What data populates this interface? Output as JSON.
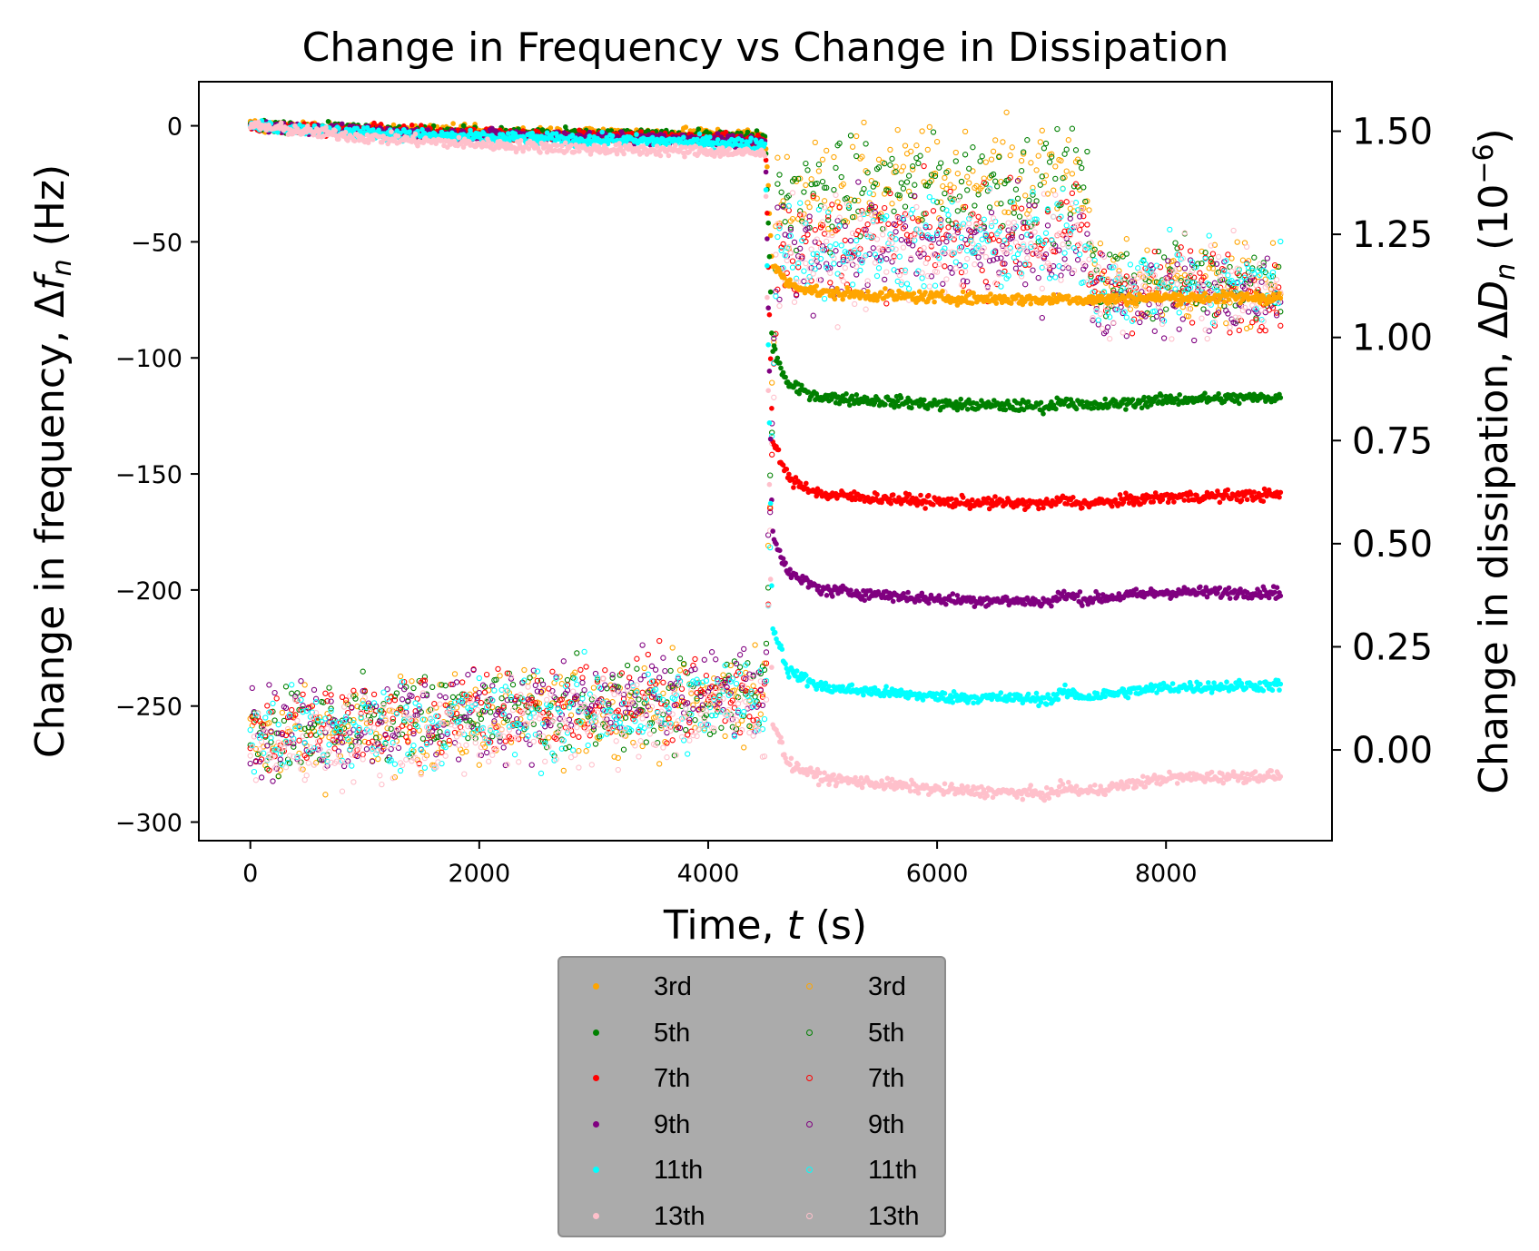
{
  "chart_data": {
    "type": "scatter",
    "title": "Change in Frequency vs Change in Dissipation",
    "xlabel": "Time, t (s)",
    "ylabel_left": "Change in frequency, Δf_n (Hz)",
    "ylabel_right": "Change in dissipation, ΔD_n (10^-6)",
    "xlim": [
      -450,
      9450
    ],
    "ylim_left": [
      -308,
      19
    ],
    "ylim_right": [
      -0.22,
      1.62
    ],
    "x_ticks": [
      0,
      2000,
      4000,
      6000,
      8000
    ],
    "x_tick_labels": [
      "0",
      "2000",
      "4000",
      "6000",
      "8000"
    ],
    "y_left_ticks": [
      0,
      -50,
      -100,
      -150,
      -200,
      -250,
      -300
    ],
    "y_left_tick_labels": [
      "0",
      "−50",
      "−100",
      "−150",
      "−200",
      "−250",
      "−300"
    ],
    "y_right_ticks": [
      1.5,
      1.25,
      1.0,
      0.75,
      0.5,
      0.25,
      0.0
    ],
    "y_right_tick_labels": [
      "1.50",
      "1.25",
      "1.00",
      "0.75",
      "0.50",
      "0.25",
      "0.00"
    ],
    "grid": false,
    "legend_position": "below plot, center",
    "frequency_series": [
      {
        "name": "3rd",
        "color": "#ffa500",
        "x": [
          0,
          1000,
          2000,
          3000,
          4000,
          4500,
          4560,
          4700,
          5000,
          6000,
          7000,
          7100,
          7300,
          8000,
          9000
        ],
        "y": [
          0,
          -1.5,
          -2.5,
          -3,
          -3.5,
          -4,
          -60,
          -68,
          -72,
          -74,
          -75,
          -74,
          -75,
          -74,
          -74
        ]
      },
      {
        "name": "5th",
        "color": "#008000",
        "x": [
          0,
          1000,
          2000,
          3000,
          4000,
          4500,
          4560,
          4700,
          5000,
          6000,
          7000,
          7100,
          7300,
          8000,
          9000
        ],
        "y": [
          0,
          -1.5,
          -3,
          -4,
          -4.5,
          -5,
          -95,
          -112,
          -117,
          -120,
          -121,
          -118,
          -121,
          -118,
          -117
        ]
      },
      {
        "name": "7th",
        "color": "#ff0000",
        "x": [
          0,
          1000,
          2000,
          3000,
          4000,
          4500,
          4560,
          4700,
          5000,
          6000,
          7000,
          7100,
          7300,
          8000,
          9000
        ],
        "y": [
          0,
          -2,
          -3.5,
          -4.5,
          -5,
          -6,
          -135,
          -152,
          -159,
          -162,
          -163,
          -161,
          -163,
          -160,
          -159
        ]
      },
      {
        "name": "9th",
        "color": "#800080",
        "x": [
          0,
          1000,
          2000,
          3000,
          4000,
          4500,
          4560,
          4700,
          5000,
          6000,
          7000,
          7100,
          7300,
          8000,
          9000
        ],
        "y": [
          0,
          -2.5,
          -4,
          -5,
          -6,
          -7,
          -175,
          -193,
          -200,
          -204,
          -205,
          -202,
          -204,
          -201,
          -201
        ]
      },
      {
        "name": "11th",
        "color": "#00ffff",
        "x": [
          0,
          1000,
          2000,
          3000,
          4000,
          4500,
          4560,
          4700,
          5000,
          6000,
          7000,
          7100,
          7300,
          8000,
          9000
        ],
        "y": [
          0,
          -3,
          -5,
          -6,
          -7,
          -8,
          -215,
          -235,
          -242,
          -246,
          -247,
          -244,
          -246,
          -242,
          -241
        ]
      },
      {
        "name": "13th",
        "color": "#ffc0cb",
        "x": [
          0,
          1000,
          2000,
          3000,
          4000,
          4500,
          4560,
          4700,
          5000,
          6000,
          7000,
          7100,
          7300,
          8000,
          9000
        ],
        "y": [
          0,
          -5,
          -8,
          -10,
          -11,
          -12,
          -255,
          -275,
          -281,
          -286,
          -288,
          -285,
          -287,
          -281,
          -280
        ]
      }
    ],
    "dissipation_series": [
      {
        "name": "3rd",
        "color": "#ffa500",
        "x": [
          0,
          2000,
          4000,
          4500,
          4600,
          5500,
          6500,
          7300,
          7360,
          8000,
          9000
        ],
        "y": [
          0.02,
          0.07,
          0.12,
          0.14,
          1.34,
          1.38,
          1.39,
          1.4,
          1.12,
          1.13,
          1.12
        ]
      },
      {
        "name": "5th",
        "color": "#008000",
        "x": [
          0,
          2000,
          4000,
          4500,
          4600,
          5500,
          6500,
          7300,
          7360,
          8000,
          9000
        ],
        "y": [
          0.03,
          0.08,
          0.12,
          0.14,
          1.33,
          1.36,
          1.37,
          1.38,
          1.13,
          1.14,
          1.14
        ]
      },
      {
        "name": "7th",
        "color": "#ff0000",
        "x": [
          0,
          2000,
          4000,
          4500,
          4600,
          5500,
          6500,
          7300,
          7360,
          8000,
          9000
        ],
        "y": [
          0.04,
          0.09,
          0.13,
          0.14,
          1.22,
          1.24,
          1.24,
          1.25,
          1.12,
          1.12,
          1.12
        ]
      },
      {
        "name": "9th",
        "color": "#800080",
        "x": [
          0,
          2000,
          4000,
          4500,
          4600,
          5500,
          6500,
          7300,
          7360,
          8000,
          9000
        ],
        "y": [
          0.04,
          0.09,
          0.13,
          0.14,
          1.2,
          1.21,
          1.21,
          1.21,
          1.1,
          1.1,
          1.1
        ]
      },
      {
        "name": "11th",
        "color": "#00ffff",
        "x": [
          0,
          2000,
          4000,
          4500,
          4600,
          5500,
          6500,
          7300,
          7360,
          8000,
          9000
        ],
        "y": [
          0.03,
          0.07,
          0.11,
          0.12,
          1.22,
          1.23,
          1.23,
          1.23,
          1.13,
          1.13,
          1.13
        ]
      },
      {
        "name": "13th",
        "color": "#ffc0cb",
        "x": [
          0,
          2000,
          4000,
          4500,
          4600,
          5500,
          6500,
          7300,
          7360,
          8000,
          9000
        ],
        "y": [
          0.0,
          0.05,
          0.08,
          0.09,
          1.2,
          1.21,
          1.21,
          1.22,
          1.11,
          1.11,
          1.11
        ]
      }
    ],
    "legend": {
      "frequency_labels": [
        "3rd",
        "5th",
        "7th",
        "9th",
        "11th",
        "13th"
      ],
      "dissipation_labels": [
        "3rd",
        "5th",
        "7th",
        "9th",
        "11th",
        "13th"
      ]
    }
  }
}
